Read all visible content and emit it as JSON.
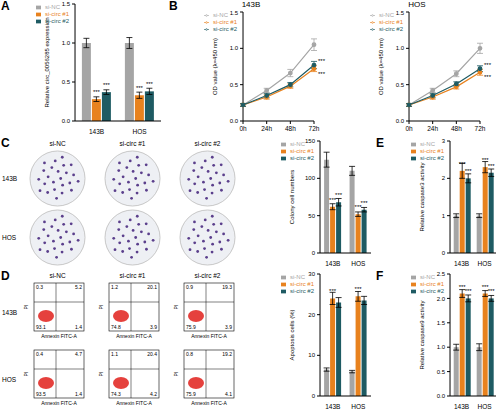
{
  "chart_data": [
    {
      "panel": "A",
      "type": "bar",
      "y_label": "Relative circ_0056285 expression",
      "categories": [
        "143B",
        "HOS"
      ],
      "ylim": [
        0,
        1.5
      ],
      "yticks": [
        {
          "value": 0,
          "label": "0.0"
        },
        0.5,
        {
          "value": 1,
          "label": "1.0"
        },
        1.5
      ],
      "legend": "upper left",
      "series": [
        {
          "name": "si-NC",
          "color": "#a5a5a5",
          "values": [
            1,
            1
          ],
          "errors": [
            0.06,
            0.07
          ]
        },
        {
          "name": "si-circ #1",
          "color": "#e8821e",
          "values": [
            0.28,
            0.33
          ],
          "errors": [
            0.03,
            0.04
          ],
          "significance": [
            "***",
            "***"
          ]
        },
        {
          "name": "si-circ #2",
          "color": "#1e5b63",
          "values": [
            0.37,
            0.38
          ],
          "errors": [
            0.03,
            0.04
          ],
          "significance": [
            "***",
            "***"
          ]
        }
      ]
    },
    {
      "panel": "B",
      "type": "line",
      "title": "143B",
      "y_label": "OD value (λ=450 nm)",
      "categories": [
        "0h",
        "24h",
        "48h",
        "72h"
      ],
      "ylim": [
        0,
        1.5
      ],
      "yticks": [
        {
          "value": 0,
          "label": "0.0"
        },
        0.5,
        {
          "value": 1,
          "label": "1.0"
        },
        1.5
      ],
      "legend": "upper left",
      "marker": "circle",
      "series": [
        {
          "name": "si-NC",
          "color": "#a5a5a5",
          "values": [
            0.22,
            0.42,
            0.66,
            1.05
          ],
          "errors": [
            0.02,
            0.03,
            0.05,
            0.08
          ]
        },
        {
          "name": "si-circ #1",
          "color": "#e8821e",
          "values": [
            0.22,
            0.33,
            0.48,
            0.72
          ],
          "errors": [
            0.02,
            0.03,
            0.03,
            0.04
          ],
          "significance": "***"
        },
        {
          "name": "si-circ #2",
          "color": "#1e5b63",
          "values": [
            0.22,
            0.35,
            0.5,
            0.77
          ],
          "errors": [
            0.02,
            0.03,
            0.03,
            0.05
          ],
          "significance": "***"
        }
      ]
    },
    {
      "type": "line",
      "title": "HOS",
      "y_label": "OD value (λ=450 nm)",
      "categories": [
        "0h",
        "24h",
        "48h",
        "72h"
      ],
      "ylim": [
        0,
        1.5
      ],
      "yticks": [
        {
          "value": 0,
          "label": "0.0"
        },
        0.5,
        {
          "value": 1,
          "label": "1.0"
        },
        1.5
      ],
      "legend": "upper left",
      "marker": "circle",
      "series": [
        {
          "name": "si-NC",
          "color": "#a5a5a5",
          "values": [
            0.22,
            0.42,
            0.65,
            1
          ],
          "errors": [
            0.02,
            0.03,
            0.04,
            0.07
          ]
        },
        {
          "name": "si-circ #1",
          "color": "#e8821e",
          "values": [
            0.22,
            0.33,
            0.47,
            0.67
          ],
          "errors": [
            0.02,
            0.03,
            0.03,
            0.04
          ],
          "significance": "***"
        },
        {
          "name": "si-circ #2",
          "color": "#1e5b63",
          "values": [
            0.22,
            0.35,
            0.51,
            0.72
          ],
          "errors": [
            0.02,
            0.03,
            0.03,
            0.04
          ],
          "significance": "***"
        }
      ]
    },
    {
      "panel": "C",
      "type": "colony_images",
      "rows": [
        "143B",
        "HOS"
      ],
      "columns": [
        "si-NC",
        "si-circ #1",
        "si-circ #2"
      ]
    },
    {
      "type": "bar",
      "y_label": "Colony cell numbers",
      "categories": [
        "143B",
        "HOS"
      ],
      "ylim": [
        0,
        150
      ],
      "yticks": [
        0,
        50,
        100,
        150
      ],
      "legend": "upper left",
      "series": [
        {
          "name": "si-NC",
          "color": "#a5a5a5",
          "values": [
            125,
            110
          ],
          "errors": [
            10,
            6
          ]
        },
        {
          "name": "si-circ #1",
          "color": "#e8821e",
          "values": [
            62,
            52
          ],
          "errors": [
            4,
            3
          ],
          "significance": [
            "***",
            "***"
          ]
        },
        {
          "name": "si-circ #2",
          "color": "#1e5b63",
          "values": [
            68,
            58
          ],
          "errors": [
            5,
            3
          ],
          "significance": [
            "***",
            "***"
          ]
        }
      ]
    },
    {
      "panel": "D",
      "type": "flow_cytometry",
      "rows": [
        "143B",
        "HOS"
      ],
      "columns": [
        "si-NC",
        "si-circ #1",
        "si-circ #2"
      ],
      "x_label": "Annexin FITC-A",
      "y_label": "PI",
      "quadrants": [
        [
          [
            0.3,
            5.2,
            93.1,
            1.4
          ],
          [
            1.2,
            20.1,
            74.8,
            3.9
          ],
          [
            0.9,
            19.3,
            75.9,
            3.9
          ]
        ],
        [
          [
            0.4,
            4.7,
            93.5,
            1.4
          ],
          [
            1.1,
            20.4,
            74.3,
            4.2
          ],
          [
            0.8,
            19.2,
            75.9,
            4.1
          ]
        ]
      ]
    },
    {
      "type": "bar",
      "y_label": "Apoptosis cells (%)",
      "categories": [
        "143B",
        "HOS"
      ],
      "ylim": [
        0,
        30
      ],
      "yticks": [
        0,
        10,
        20,
        30
      ],
      "legend": "upper left",
      "series": [
        {
          "name": "si-NC",
          "color": "#a5a5a5",
          "values": [
            6.5,
            6
          ],
          "errors": [
            0.4,
            0.3
          ]
        },
        {
          "name": "si-circ #1",
          "color": "#e8821e",
          "values": [
            24,
            24.5
          ],
          "errors": [
            1.5,
            1.2
          ],
          "significance": [
            "***",
            "***"
          ]
        },
        {
          "name": "si-circ #2",
          "color": "#1e5b63",
          "values": [
            23,
            23.5
          ],
          "errors": [
            1.2,
            1
          ]
        }
      ]
    },
    {
      "panel": "E",
      "type": "bar",
      "y_label": "Relative caspase3 activity",
      "categories": [
        "143B",
        "HOS"
      ],
      "ylim": [
        0,
        3
      ],
      "yticks": [
        0,
        1,
        2,
        3
      ],
      "legend": "upper left",
      "series": [
        {
          "name": "si-NC",
          "color": "#a5a5a5",
          "values": [
            1,
            1
          ],
          "errors": [
            0.05,
            0.05
          ]
        },
        {
          "name": "si-circ #1",
          "color": "#e8821e",
          "values": [
            2.2,
            2.3
          ],
          "errors": [
            0.2,
            0.15
          ],
          "significance": [
            "***",
            "***"
          ]
        },
        {
          "name": "si-circ #2",
          "color": "#1e5b63",
          "values": [
            2,
            2.15
          ],
          "errors": [
            0.12,
            0.1
          ],
          "significance": [
            "***",
            "***"
          ]
        }
      ]
    },
    {
      "panel": "F",
      "type": "bar",
      "y_label": "Relative caspase9 activity",
      "categories": [
        "143B",
        "HOS"
      ],
      "ylim": [
        0,
        2.5
      ],
      "yticks": [
        {
          "value": 0,
          "label": "0.0"
        },
        0.5,
        {
          "value": 1,
          "label": "1.0"
        },
        1.5,
        {
          "value": 2,
          "label": "2.0"
        },
        2.5
      ],
      "legend": "upper left",
      "series": [
        {
          "name": "si-NC",
          "color": "#a5a5a5",
          "values": [
            1,
            1
          ],
          "errors": [
            0.06,
            0.07
          ]
        },
        {
          "name": "si-circ #1",
          "color": "#e8821e",
          "values": [
            2.1,
            2.1
          ],
          "errors": [
            0.08,
            0.06
          ],
          "significance": [
            "***",
            "***"
          ]
        },
        {
          "name": "si-circ #2",
          "color": "#1e5b63",
          "values": [
            2,
            2
          ],
          "errors": [
            0.07,
            0.06
          ],
          "significance": [
            "***",
            "***"
          ]
        }
      ]
    }
  ]
}
